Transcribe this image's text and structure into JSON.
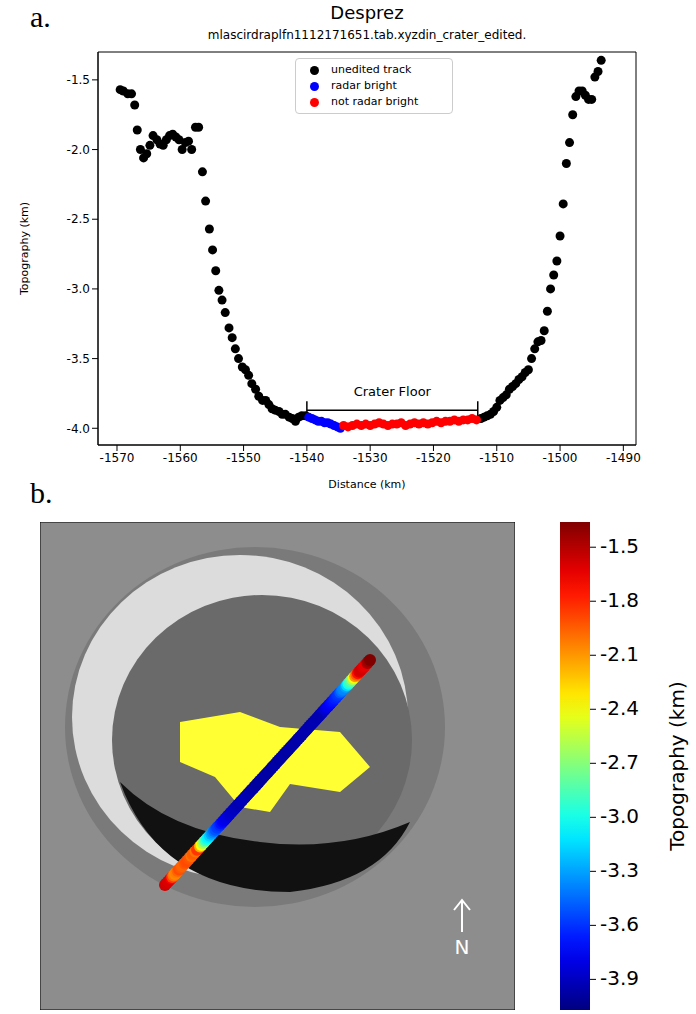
{
  "chart_data": [
    {
      "type": "scatter",
      "panel": "a.",
      "title": "Desprez",
      "subtitle": "mlascirdraplfn1112171651.tab.xyzdin_crater_edited.",
      "x_label": "Distance (km)",
      "y_label": "Topography (km)",
      "xlim": [
        -1573,
        -1488
      ],
      "xticks": [
        -1570,
        -1560,
        -1550,
        -1540,
        -1530,
        -1520,
        -1510,
        -1500,
        -1490
      ],
      "ylim": [
        -4.12,
        -1.3
      ],
      "yticks": [
        {
          "value": -4,
          "label": "-4.0"
        },
        -3.5,
        {
          "value": -3,
          "label": "-3.0"
        },
        -2.5,
        {
          "value": -2,
          "label": "-2.0"
        },
        -1.5
      ],
      "legend": "top",
      "series": [
        {
          "name": "unedited track",
          "color": "#000000",
          "marker": "circle",
          "x": [
            -1569.5,
            -1569,
            -1568.3,
            -1567.7,
            -1567.2,
            -1566.8,
            -1566.3,
            -1565.8,
            -1565.3,
            -1564.8,
            -1564.3,
            -1563.7,
            -1563.2,
            -1562.7,
            -1562.2,
            -1561.7,
            -1561.2,
            -1560.7,
            -1560.2,
            -1559.7,
            -1559.2,
            -1558.7,
            -1558.2,
            -1557.6,
            -1557.1,
            -1556.5,
            -1556,
            -1555.4,
            -1554.9,
            -1554.4,
            -1553.9,
            -1553.4,
            -1552.9,
            -1552.3,
            -1551.8,
            -1551.3,
            -1550.8,
            -1550.2,
            -1549.7,
            -1549.2,
            -1548.7,
            -1548.1,
            -1547.6,
            -1547,
            -1546.5,
            -1546,
            -1545.5,
            -1545,
            -1544.4,
            -1543.9,
            -1543.4,
            -1542.8,
            -1542.3,
            -1541.8,
            -1541.3,
            -1540.8,
            -1540.2,
            -1512.5,
            -1512,
            -1511.5,
            -1511,
            -1510.5,
            -1510,
            -1509.5,
            -1509,
            -1508.5,
            -1508,
            -1507.5,
            -1507,
            -1506.5,
            -1506,
            -1505.5,
            -1505,
            -1504.5,
            -1504,
            -1503.5,
            -1503,
            -1502.5,
            -1502,
            -1501.5,
            -1501,
            -1500.5,
            -1500,
            -1499.5,
            -1499,
            -1498.5,
            -1498,
            -1497.5,
            -1497,
            -1496.5,
            -1496,
            -1495.5,
            -1495,
            -1494.5,
            -1494,
            -1493.5
          ],
          "values": [
            -1.57,
            -1.58,
            -1.6,
            -1.6,
            -1.68,
            -1.86,
            -2.0,
            -2.06,
            -2.03,
            -1.97,
            -1.9,
            -1.93,
            -1.96,
            -1.97,
            -1.93,
            -1.9,
            -1.89,
            -1.91,
            -1.93,
            -2.0,
            -1.95,
            -1.94,
            -2.0,
            -1.84,
            -1.84,
            -2.16,
            -2.37,
            -2.57,
            -2.72,
            -2.87,
            -3.01,
            -3.08,
            -3.17,
            -3.28,
            -3.35,
            -3.43,
            -3.5,
            -3.56,
            -3.58,
            -3.62,
            -3.68,
            -3.72,
            -3.77,
            -3.8,
            -3.8,
            -3.83,
            -3.86,
            -3.87,
            -3.88,
            -3.9,
            -3.9,
            -3.92,
            -3.93,
            -3.95,
            -3.92,
            -3.91,
            -3.91,
            -3.93,
            -3.92,
            -3.91,
            -3.9,
            -3.88,
            -3.85,
            -3.8,
            -3.78,
            -3.76,
            -3.72,
            -3.7,
            -3.68,
            -3.65,
            -3.63,
            -3.6,
            -3.58,
            -3.5,
            -3.43,
            -3.38,
            -3.37,
            -3.3,
            -3.16,
            -3.0,
            -2.9,
            -2.8,
            -2.62,
            -2.39,
            -2.1,
            -1.95,
            -1.75,
            -1.62,
            -1.58,
            -1.58,
            -1.61,
            -1.64,
            -1.64,
            -1.48,
            -1.44,
            -1.36
          ]
        },
        {
          "name": "radar bright",
          "color": "#0000ff",
          "marker": "circle",
          "x": [
            -1539.7,
            -1539.2,
            -1538.7,
            -1538.2,
            -1537.7,
            -1537.2,
            -1536.7,
            -1536.2,
            -1535.7,
            -1535.2,
            -1534.7
          ],
          "values": [
            -3.92,
            -3.93,
            -3.94,
            -3.95,
            -3.95,
            -3.96,
            -3.96,
            -3.97,
            -3.98,
            -3.99,
            -4.0
          ]
        },
        {
          "name": "not radar bright",
          "color": "#ff0000",
          "marker": "circle",
          "x": [
            -1534.2,
            -1533.5,
            -1532.8,
            -1532.1,
            -1531.4,
            -1530.7,
            -1530,
            -1529.3,
            -1528.6,
            -1527.9,
            -1527.2,
            -1526.5,
            -1525.8,
            -1525.1,
            -1524.4,
            -1523.7,
            -1523,
            -1522.3,
            -1521.6,
            -1520.9,
            -1520.2,
            -1519.5,
            -1518.8,
            -1518.1,
            -1517.4,
            -1516.7,
            -1516,
            -1515.3,
            -1514.6,
            -1513.9,
            -1513.2
          ],
          "values": [
            -3.98,
            -3.99,
            -3.98,
            -3.97,
            -3.98,
            -3.97,
            -3.98,
            -3.97,
            -3.96,
            -3.97,
            -3.98,
            -3.97,
            -3.97,
            -3.96,
            -3.98,
            -3.97,
            -3.96,
            -3.97,
            -3.96,
            -3.97,
            -3.96,
            -3.95,
            -3.96,
            -3.95,
            -3.95,
            -3.94,
            -3.95,
            -3.94,
            -3.94,
            -3.93,
            -3.94
          ]
        }
      ],
      "annotations": [
        {
          "text": "Crater Floor",
          "x": [
            -1540,
            -1513
          ],
          "y": -3.87
        }
      ]
    },
    {
      "type": "map",
      "panel": "b.",
      "annotations": [
        "N"
      ],
      "colorbar": {
        "label": "Topography (km)",
        "range": [
          -4.07,
          -1.36
        ],
        "ticks": [
          -1.5,
          -1.8,
          -2.1,
          -2.4,
          -2.7,
          {
            "value": -3,
            "label": "-3.0"
          },
          -3.3,
          -3.6,
          -3.9
        ]
      }
    }
  ]
}
